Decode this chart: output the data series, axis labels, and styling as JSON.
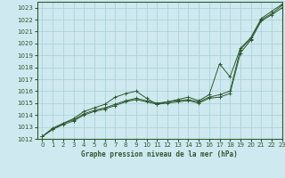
{
  "title": "Graphe pression niveau de la mer (hPa)",
  "bg_color": "#cfe9f0",
  "grid_color": "#aad4d8",
  "line_color": "#2d5a2d",
  "marker_color": "#2d5a2d",
  "xlim": [
    -0.5,
    23
  ],
  "ylim": [
    1012,
    1023.5
  ],
  "xticks": [
    0,
    1,
    2,
    3,
    4,
    5,
    6,
    7,
    8,
    9,
    10,
    11,
    12,
    13,
    14,
    15,
    16,
    17,
    18,
    19,
    20,
    21,
    22,
    23
  ],
  "yticks": [
    1012,
    1013,
    1014,
    1015,
    1016,
    1017,
    1018,
    1019,
    1020,
    1021,
    1022,
    1023
  ],
  "series1_x": [
    0,
    1,
    2,
    3,
    4,
    5,
    6,
    7,
    8,
    9,
    10,
    11,
    12,
    13,
    14,
    15,
    16,
    17,
    18,
    19,
    20,
    21,
    22,
    23
  ],
  "series1_y": [
    1012.2,
    1012.8,
    1013.3,
    1013.6,
    1014.1,
    1014.4,
    1014.6,
    1014.9,
    1015.2,
    1015.4,
    1015.2,
    1015.0,
    1015.1,
    1015.2,
    1015.3,
    1015.1,
    1015.5,
    1015.7,
    1016.0,
    1019.5,
    1020.4,
    1022.0,
    1022.5,
    1023.2
  ],
  "series2_x": [
    0,
    1,
    2,
    3,
    4,
    5,
    6,
    7,
    8,
    9,
    10,
    11,
    12,
    13,
    14,
    15,
    16,
    17,
    18,
    19,
    20,
    21,
    22,
    23
  ],
  "series2_y": [
    1012.2,
    1012.9,
    1013.3,
    1013.7,
    1014.3,
    1014.6,
    1014.9,
    1015.5,
    1015.8,
    1016.0,
    1015.4,
    1014.9,
    1015.1,
    1015.3,
    1015.5,
    1015.2,
    1015.7,
    1018.3,
    1017.2,
    1019.6,
    1020.5,
    1022.1,
    1022.7,
    1023.3
  ],
  "series3_x": [
    0,
    1,
    2,
    3,
    4,
    5,
    6,
    7,
    8,
    9,
    10,
    11,
    12,
    13,
    14,
    15,
    16,
    17,
    18,
    19,
    20,
    21,
    22,
    23
  ],
  "series3_y": [
    1012.2,
    1012.8,
    1013.2,
    1013.5,
    1014.0,
    1014.3,
    1014.5,
    1014.8,
    1015.1,
    1015.3,
    1015.1,
    1014.9,
    1015.0,
    1015.1,
    1015.2,
    1015.0,
    1015.4,
    1015.5,
    1015.8,
    1019.2,
    1020.3,
    1021.9,
    1022.4,
    1023.0
  ]
}
